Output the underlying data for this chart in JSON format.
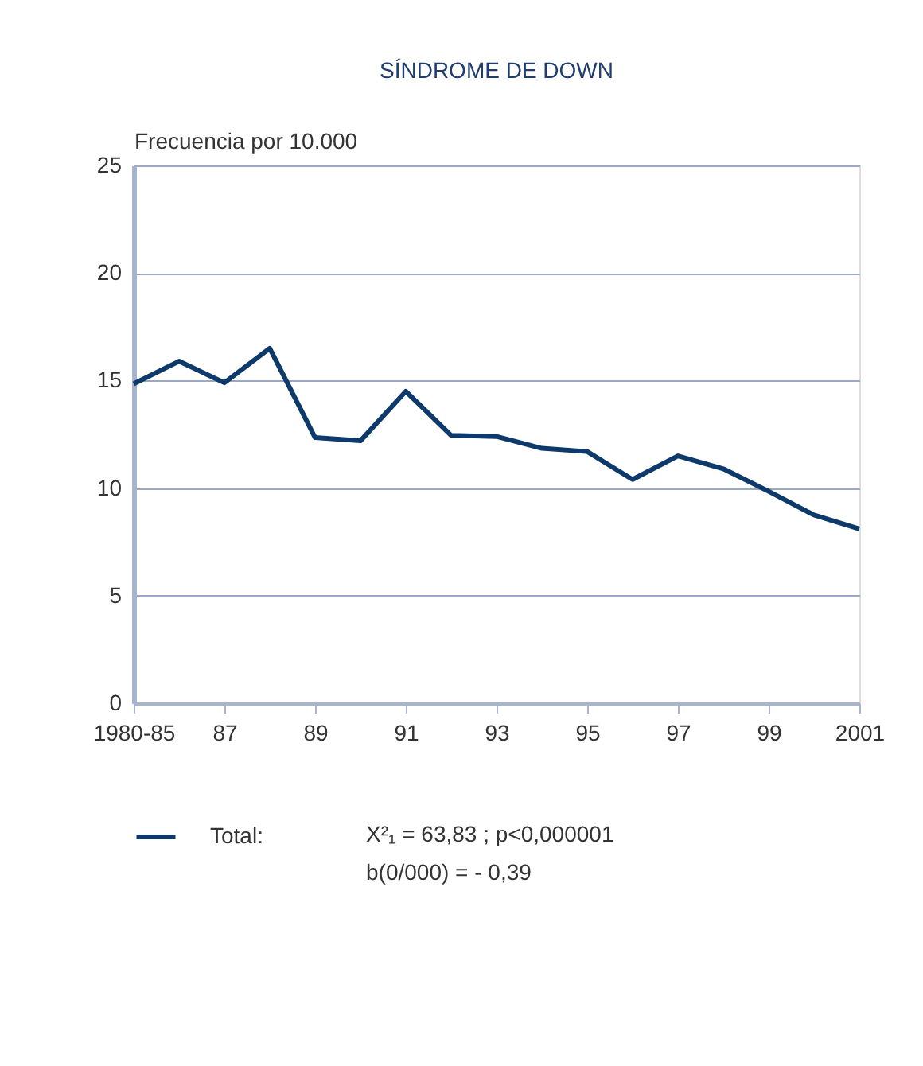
{
  "chart_data": {
    "type": "line",
    "title": "SÍNDROME DE DOWN",
    "ylabel": "Frecuencia por 10.000",
    "categories": [
      "1980-85",
      null,
      "87",
      null,
      "89",
      null,
      "91",
      null,
      "93",
      null,
      "95",
      null,
      "97",
      null,
      "99",
      null,
      "2001"
    ],
    "series": [
      {
        "name": "Total:",
        "color": "#0d3a6b",
        "values": [
          14.85,
          15.9,
          14.9,
          16.5,
          12.35,
          12.2,
          14.5,
          12.45,
          12.4,
          11.85,
          11.7,
          10.4,
          11.5,
          10.9,
          9.85,
          8.75,
          8.1
        ]
      }
    ],
    "ylim": [
      0,
      25
    ],
    "yticks": [
      0,
      5,
      10,
      15,
      20,
      25
    ],
    "grid": "y",
    "legend": "bottom left",
    "marker": "none",
    "line_style": "solid",
    "annotations": [
      "X²₁ = 63,83 ;  p<0,000001",
      "b(0/000) = - 0,39"
    ]
  }
}
